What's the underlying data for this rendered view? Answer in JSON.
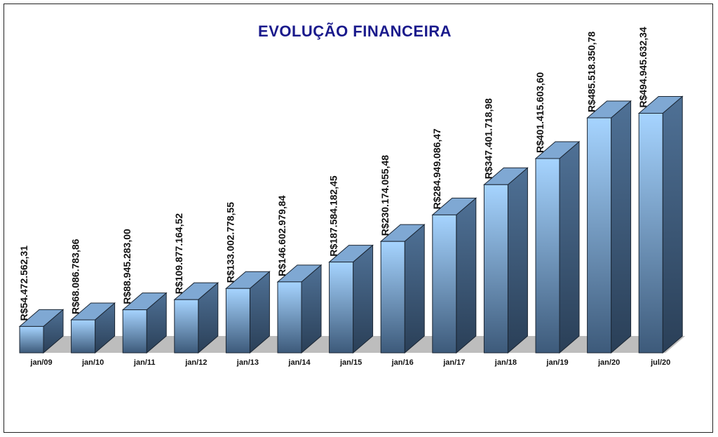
{
  "chart_data": {
    "type": "bar",
    "title": "EVOLUÇÃO FINANCEIRA",
    "xlabel": "",
    "ylabel": "",
    "categories": [
      "jan/09",
      "jan/10",
      "jan/11",
      "jan/12",
      "jan/13",
      "jan/14",
      "jan/15",
      "jan/16",
      "jan/17",
      "jan/18",
      "jan/19",
      "jan/20",
      "jul/20"
    ],
    "values": [
      54472562.31,
      68086783.86,
      88945283.0,
      109877164.52,
      133002778.55,
      146602979.84,
      187584182.45,
      230174055.48,
      284949086.47,
      347401718.98,
      401415603.6,
      485518350.78,
      494945632.34
    ],
    "data_labels": [
      "R$54.472.562,31",
      "R$68.086.783,86",
      "R$88.945.283,00",
      "R$109.877.164,52",
      "R$133.002.778,55",
      "R$146.602.979,84",
      "R$187.584.182,45",
      "R$230.174.055,48",
      "R$284.949.086,47",
      "R$347.401.718,98",
      "R$401.415.603,60",
      "R$485.518.350,78",
      "R$494.945.632,34"
    ],
    "ylim": [
      0,
      500000000
    ],
    "grid": false,
    "legend": "none",
    "style": "3d",
    "colors": {
      "title": "#1a1a8c",
      "bar_front_top": "#a6d4ff",
      "bar_front_bottom": "#3d5a7a",
      "bar_side": "#4f7196",
      "bar_top": "#7fa8d3",
      "floor": "#bdbdbd"
    }
  }
}
